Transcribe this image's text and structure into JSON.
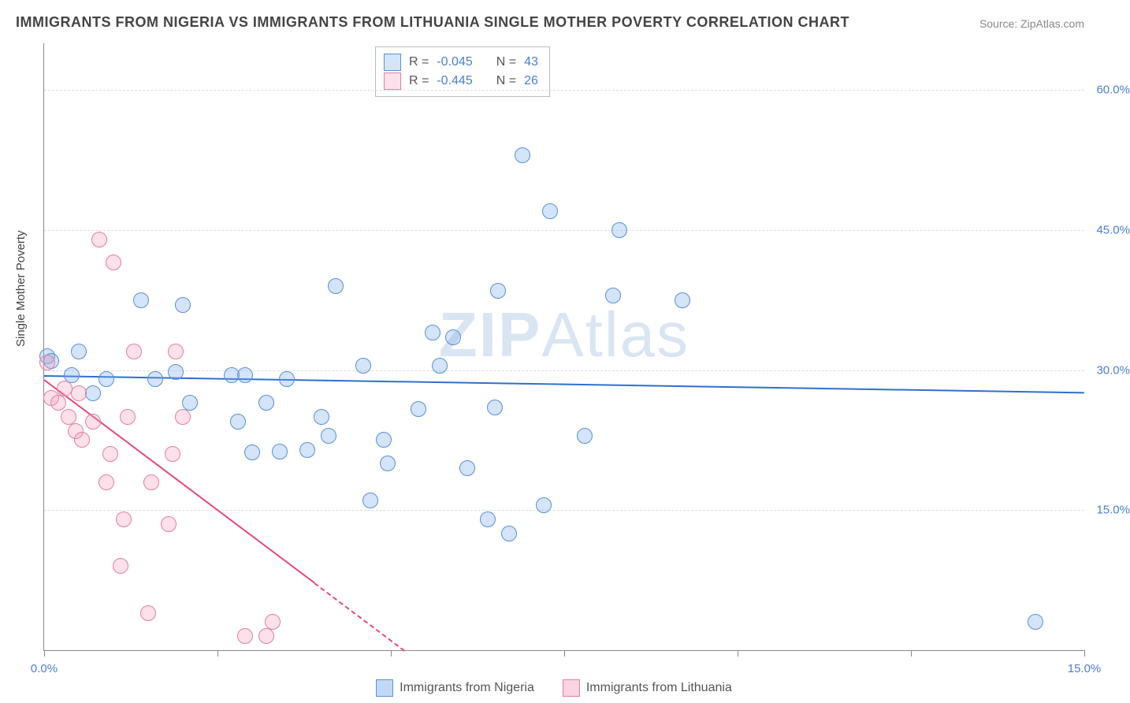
{
  "title": "IMMIGRANTS FROM NIGERIA VS IMMIGRANTS FROM LITHUANIA SINGLE MOTHER POVERTY CORRELATION CHART",
  "source": "Source: ZipAtlas.com",
  "ylabel": "Single Mother Poverty",
  "watermark_zip": "ZIP",
  "watermark_atlas": "Atlas",
  "chart": {
    "type": "scatter-correlation",
    "x_domain": [
      0,
      15
    ],
    "y_domain": [
      0,
      65
    ],
    "y_ticks": [
      15,
      30,
      45,
      60
    ],
    "y_tick_labels": [
      "15.0%",
      "30.0%",
      "45.0%",
      "60.0%"
    ],
    "x_ticks": [
      0,
      2.5,
      5,
      7.5,
      10,
      12.5,
      15
    ],
    "x_tick_labels": {
      "0": "0.0%",
      "15": "15.0%"
    },
    "grid_color": "#dddddd",
    "axis_color": "#888888",
    "background": "#ffffff",
    "point_radius": 9,
    "point_stroke_width": 1.2,
    "trend_width": 2.2,
    "series": [
      {
        "name": "Immigrants from Nigeria",
        "fill": "rgba(120,170,235,0.32)",
        "stroke": "#5a8fd6",
        "trend_color": "#2f6fd0",
        "trend": {
          "x1": 0,
          "y1": 29.5,
          "x2": 15,
          "y2": 27.7,
          "dashed": false
        },
        "R": "-0.045",
        "N": "43",
        "points": [
          [
            0.05,
            31.5
          ],
          [
            0.1,
            31
          ],
          [
            0.4,
            29.5
          ],
          [
            0.5,
            32
          ],
          [
            0.7,
            27.5
          ],
          [
            0.9,
            29
          ],
          [
            1.4,
            37.5
          ],
          [
            1.6,
            29
          ],
          [
            1.9,
            29.8
          ],
          [
            2.0,
            37
          ],
          [
            2.1,
            26.5
          ],
          [
            2.7,
            29.5
          ],
          [
            2.8,
            24.5
          ],
          [
            3.0,
            21.2
          ],
          [
            2.9,
            29.5
          ],
          [
            3.2,
            26.5
          ],
          [
            3.4,
            21.3
          ],
          [
            3.5,
            29
          ],
          [
            3.8,
            21.4
          ],
          [
            4.0,
            25
          ],
          [
            4.1,
            23
          ],
          [
            4.2,
            39
          ],
          [
            4.6,
            30.5
          ],
          [
            4.7,
            16
          ],
          [
            4.9,
            22.5
          ],
          [
            4.95,
            20
          ],
          [
            5.4,
            25.8
          ],
          [
            5.6,
            34
          ],
          [
            5.7,
            30.5
          ],
          [
            5.9,
            33.5
          ],
          [
            6.1,
            19.5
          ],
          [
            6.4,
            14
          ],
          [
            6.5,
            26
          ],
          [
            6.55,
            38.5
          ],
          [
            6.7,
            12.5
          ],
          [
            6.9,
            53
          ],
          [
            7.2,
            15.5
          ],
          [
            7.3,
            47
          ],
          [
            7.8,
            23
          ],
          [
            8.2,
            38
          ],
          [
            8.3,
            45
          ],
          [
            9.2,
            37.5
          ],
          [
            14.3,
            3
          ]
        ]
      },
      {
        "name": "Immigrants from Lithuania",
        "fill": "rgba(245,160,190,0.32)",
        "stroke": "#e37fa3",
        "trend_color": "#e6487c",
        "trend": {
          "x1": 0,
          "y1": 29,
          "x2": 5.2,
          "y2": 0,
          "dashed_after": 3.9
        },
        "R": "-0.445",
        "N": "26",
        "points": [
          [
            0.05,
            30.8
          ],
          [
            0.1,
            27
          ],
          [
            0.2,
            26.5
          ],
          [
            0.3,
            28
          ],
          [
            0.35,
            25
          ],
          [
            0.45,
            23.5
          ],
          [
            0.5,
            27.5
          ],
          [
            0.55,
            22.5
          ],
          [
            0.7,
            24.5
          ],
          [
            0.8,
            44
          ],
          [
            0.9,
            18
          ],
          [
            0.95,
            21
          ],
          [
            1.0,
            41.5
          ],
          [
            1.1,
            9
          ],
          [
            1.15,
            14
          ],
          [
            1.2,
            25
          ],
          [
            1.3,
            32
          ],
          [
            1.5,
            4
          ],
          [
            1.55,
            18
          ],
          [
            1.8,
            13.5
          ],
          [
            1.85,
            21
          ],
          [
            1.9,
            32
          ],
          [
            2.0,
            25
          ],
          [
            2.9,
            1.5
          ],
          [
            3.2,
            1.5
          ],
          [
            3.3,
            3
          ]
        ]
      }
    ]
  },
  "legend_box": {
    "R_label": "R = ",
    "N_label": "N = "
  },
  "bottom_legend": [
    {
      "label": "Immigrants from Nigeria",
      "fill": "rgba(120,170,235,0.45)",
      "stroke": "#5a8fd6"
    },
    {
      "label": "Immigrants from Lithuania",
      "fill": "rgba(245,160,190,0.45)",
      "stroke": "#e37fa3"
    }
  ]
}
